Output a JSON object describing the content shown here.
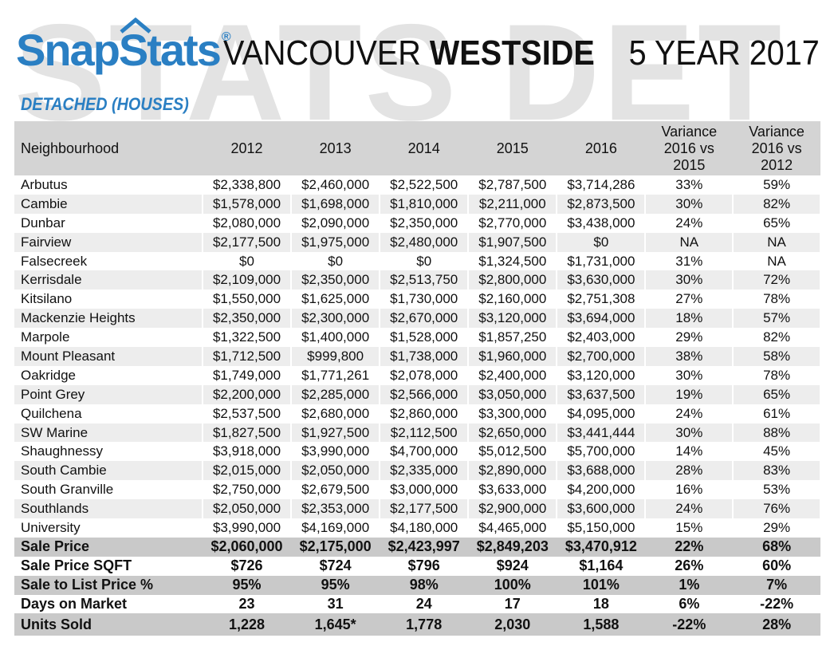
{
  "header": {
    "logo_text": "SnapStats",
    "logo_reg": "®",
    "title_part1": "VANCOUVER ",
    "title_part2": "WESTSIDE",
    "period": "5 YEAR 2017",
    "watermark": "STATS  DET",
    "subtitle": "DETACHED (HOUSES)"
  },
  "colors": {
    "brand_blue": "#2a7fc3",
    "header_gray": "#d4d4d4",
    "row_alt": "#ededed",
    "summary_gray": "#c9c9c9"
  },
  "table": {
    "columns": [
      "Neighbourhood",
      "2012",
      "2013",
      "2014",
      "2015",
      "2016",
      "Variance 2016 vs 2015",
      "Variance 2016 vs 2012"
    ],
    "column_lines": {
      "var1": [
        "Variance",
        "2016 vs",
        "2015"
      ],
      "var2": [
        "Variance",
        "2016 vs",
        "2012"
      ]
    },
    "rows": [
      [
        "Arbutus",
        "$2,338,800",
        "$2,460,000",
        "$2,522,500",
        "$2,787,500",
        "$3,714,286",
        "33%",
        "59%"
      ],
      [
        "Cambie",
        "$1,578,000",
        "$1,698,000",
        "$1,810,000",
        "$2,211,000",
        "$2,873,500",
        "30%",
        "82%"
      ],
      [
        "Dunbar",
        "$2,080,000",
        "$2,090,000",
        "$2,350,000",
        "$2,770,000",
        "$3,438,000",
        "24%",
        "65%"
      ],
      [
        "Fairview",
        "$2,177,500",
        "$1,975,000",
        "$2,480,000",
        "$1,907,500",
        "$0",
        "NA",
        "NA"
      ],
      [
        "Falsecreek",
        "$0",
        "$0",
        "$0",
        "$1,324,500",
        "$1,731,000",
        "31%",
        "NA"
      ],
      [
        "Kerrisdale",
        "$2,109,000",
        "$2,350,000",
        "$2,513,750",
        "$2,800,000",
        "$3,630,000",
        "30%",
        "72%"
      ],
      [
        "Kitsilano",
        "$1,550,000",
        "$1,625,000",
        "$1,730,000",
        "$2,160,000",
        "$2,751,308",
        "27%",
        "78%"
      ],
      [
        "Mackenzie Heights",
        "$2,350,000",
        "$2,300,000",
        "$2,670,000",
        "$3,120,000",
        "$3,694,000",
        "18%",
        "57%"
      ],
      [
        "Marpole",
        "$1,322,500",
        "$1,400,000",
        "$1,528,000",
        "$1,857,250",
        "$2,403,000",
        "29%",
        "82%"
      ],
      [
        "Mount Pleasant",
        "$1,712,500",
        "$999,800",
        "$1,738,000",
        "$1,960,000",
        "$2,700,000",
        "38%",
        "58%"
      ],
      [
        "Oakridge",
        "$1,749,000",
        "$1,771,261",
        "$2,078,000",
        "$2,400,000",
        "$3,120,000",
        "30%",
        "78%"
      ],
      [
        "Point Grey",
        "$2,200,000",
        "$2,285,000",
        "$2,566,000",
        "$3,050,000",
        "$3,637,500",
        "19%",
        "65%"
      ],
      [
        "Quilchena",
        "$2,537,500",
        "$2,680,000",
        "$2,860,000",
        "$3,300,000",
        "$4,095,000",
        "24%",
        "61%"
      ],
      [
        "SW Marine",
        "$1,827,500",
        "$1,927,500",
        "$2,112,500",
        "$2,650,000",
        "$3,441,444",
        "30%",
        "88%"
      ],
      [
        "Shaughnessy",
        "$3,918,000",
        "$3,990,000",
        "$4,700,000",
        "$5,012,500",
        "$5,700,000",
        "14%",
        "45%"
      ],
      [
        "South Cambie",
        "$2,015,000",
        "$2,050,000",
        "$2,335,000",
        "$2,890,000",
        "$3,688,000",
        "28%",
        "83%"
      ],
      [
        "South Granville",
        "$2,750,000",
        "$2,679,500",
        "$3,000,000",
        "$3,633,000",
        "$4,200,000",
        "16%",
        "53%"
      ],
      [
        "Southlands",
        "$2,050,000",
        "$2,353,000",
        "$2,177,500",
        "$2,900,000",
        "$3,600,000",
        "24%",
        "76%"
      ],
      [
        "University",
        "$3,990,000",
        "$4,169,000",
        "$4,180,000",
        "$4,465,000",
        "$5,150,000",
        "15%",
        "29%"
      ]
    ],
    "summary": [
      [
        "Sale Price",
        "$2,060,000",
        "$2,175,000",
        "$2,423,997",
        "$2,849,203",
        "$3,470,912",
        "22%",
        "68%"
      ],
      [
        "Sale Price SQFT",
        "$726",
        "$724",
        "$796",
        "$924",
        "$1,164",
        "26%",
        "60%"
      ],
      [
        "Sale to List Price %",
        "95%",
        "95%",
        "98%",
        "100%",
        "101%",
        "1%",
        "7%"
      ],
      [
        "Days on Market",
        "23",
        "31",
        "24",
        "17",
        "18",
        "6%",
        "-22%"
      ],
      [
        "Units Sold",
        "1,228",
        "1,645*",
        "1,778",
        "2,030",
        "1,588",
        "-22%",
        "28%"
      ]
    ]
  }
}
